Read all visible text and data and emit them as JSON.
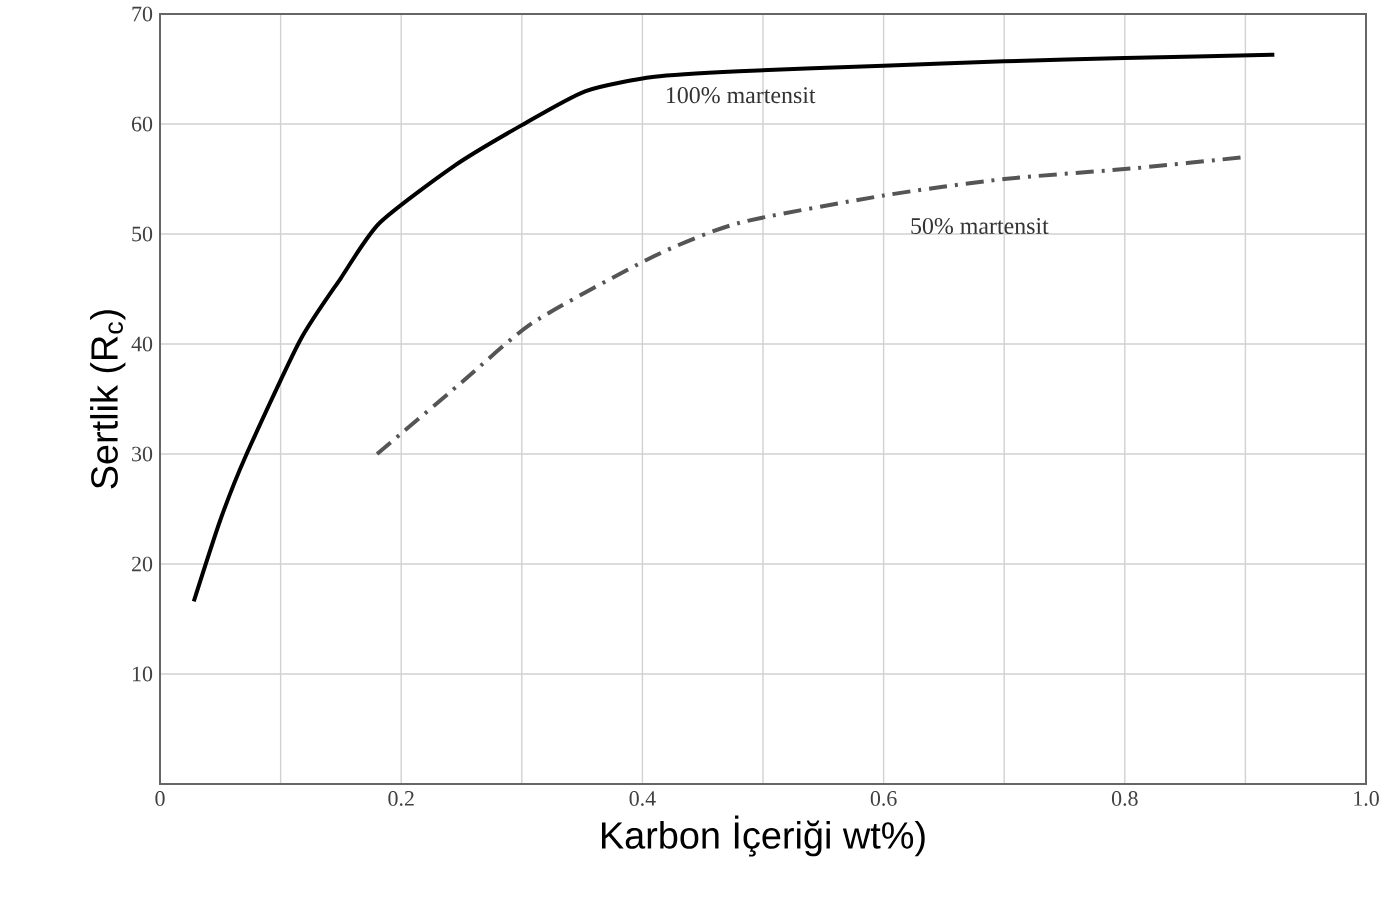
{
  "chart_data": {
    "type": "line",
    "xlabel": "Karbon İçeriği wt%)",
    "ylabel": "Sertlik (R$_{c}$)",
    "xlim": [
      0,
      1.0
    ],
    "ylim": [
      0,
      70
    ],
    "xticks": [
      0,
      {
        "value": 0.1,
        "label": null
      },
      0.2,
      {
        "value": 0.3,
        "label": null
      },
      0.4,
      {
        "value": 0.5,
        "label": null
      },
      0.6,
      {
        "value": 0.7,
        "label": null
      },
      0.8,
      {
        "value": 0.9,
        "label": null
      },
      {
        "value": 1,
        "label": "1.0"
      }
    ],
    "yticks": [
      10,
      20,
      30,
      40,
      50,
      60,
      70
    ],
    "grid": true,
    "marker": "none",
    "series": [
      {
        "name": "100% martensit",
        "color": "#000000",
        "line_style": "solid",
        "x": [
          0.028,
          0.05,
          0.071,
          0.116,
          0.15,
          0.182,
          0.244,
          0.3,
          0.353,
          0.41,
          0.48,
          0.6,
          0.7,
          0.8,
          0.924
        ],
        "values": [
          16.6,
          24,
          29.8,
          40.3,
          46,
          51,
          56.2,
          59.9,
          63,
          64.3,
          64.8,
          65.3,
          65.7,
          66,
          66.3
        ]
      },
      {
        "name": "50% martensit",
        "color": "#555555",
        "line_style": "dashdot",
        "x": [
          0.18,
          0.25,
          0.31,
          0.41,
          0.48,
          0.6,
          0.7,
          0.81,
          0.9
        ],
        "values": [
          30,
          36.5,
          42,
          48,
          51,
          53.5,
          55,
          56,
          57
        ]
      }
    ]
  }
}
